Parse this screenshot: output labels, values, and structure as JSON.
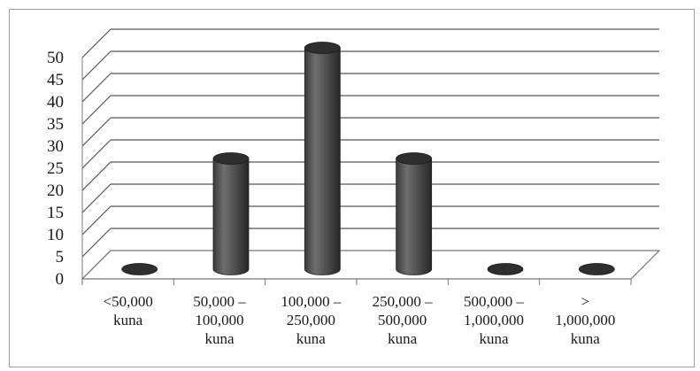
{
  "chart_data": {
    "type": "bar",
    "style": "3d-cylinder",
    "title": "",
    "xlabel": "",
    "ylabel": "",
    "categories": [
      [
        "<50,000",
        "kuna"
      ],
      [
        "50,000 –",
        "100,000",
        "kuna"
      ],
      [
        "100,000 –",
        "250,000",
        "kuna"
      ],
      [
        "250,000 –",
        "500,000",
        "kuna"
      ],
      [
        "500,000 –",
        "1,000,000",
        "kuna"
      ],
      [
        ">",
        "1,000,000",
        "kuna"
      ]
    ],
    "values": [
      0,
      25,
      50,
      25,
      0,
      0
    ],
    "ylim": [
      0,
      50
    ],
    "yticks": [
      0,
      5,
      10,
      15,
      20,
      25,
      30,
      35,
      40,
      45,
      50
    ],
    "grid": true,
    "legend": "none",
    "colors": {
      "bar_body": "#4a4a4a",
      "bar_top": "#2e2e2e",
      "grid": "#555555",
      "axis": "#777777"
    }
  }
}
